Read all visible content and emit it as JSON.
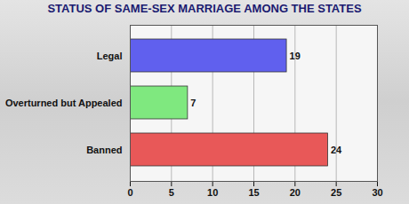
{
  "chart_data": {
    "type": "bar",
    "title": "STATUS OF SAME-SEX MARRIAGE AMONG THE STATES",
    "orientation": "horizontal",
    "categories": [
      "Legal",
      "Overturned but Appealed",
      "Banned"
    ],
    "values": [
      19,
      7,
      24
    ],
    "colors": [
      "#6060ee",
      "#7fe87f",
      "#e85858"
    ],
    "xlim": [
      0,
      30
    ],
    "xticks": [
      0,
      5,
      10,
      15,
      20,
      25,
      30
    ],
    "grid": true,
    "data_labels": true
  }
}
